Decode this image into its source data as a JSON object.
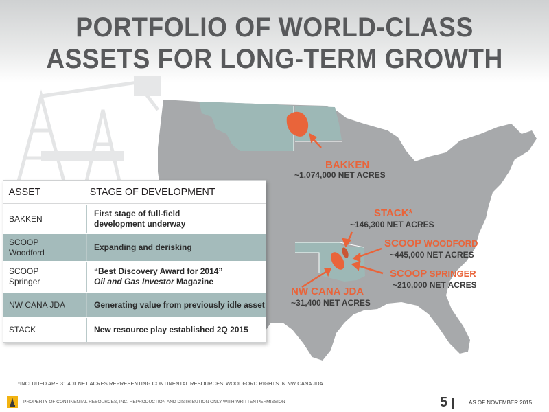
{
  "title": {
    "line1": "PORTFOLIO OF WORLD-CLASS",
    "line2": "ASSETS FOR LONG-TERM GROWTH"
  },
  "map": {
    "labels": [
      {
        "name": "BAKKEN",
        "acres": "~1,074,000 NET ACRES"
      },
      {
        "name": "STACK*",
        "acres": "~146,300 NET ACRES"
      },
      {
        "name_big": "SCOOP",
        "name_small": " WOODFORD",
        "acres": "~445,000 NET ACRES"
      },
      {
        "name_big": "SCOOP",
        "name_small": " SPRINGER",
        "acres": "~210,000 NET ACRES"
      },
      {
        "name": "NW CANA JDA",
        "acres": "~31,400 NET ACRES"
      }
    ],
    "colors": {
      "state_fill": "#9db8b6",
      "map_fill": "#a7a9ab",
      "play_fill": "#e9643a"
    }
  },
  "table": {
    "headers": [
      "ASSET",
      "STAGE OF DEVELOPMENT"
    ],
    "rows": [
      {
        "asset_lines": [
          "BAKKEN"
        ],
        "stage_lines": [
          "First stage of full-field",
          "development underway"
        ]
      },
      {
        "asset_lines": [
          "SCOOP",
          "Woodford"
        ],
        "stage_lines": [
          "Expanding and derisking"
        ]
      },
      {
        "asset_lines": [
          "SCOOP",
          "Springer"
        ],
        "stage_lines": [
          "“Best Discovery Award for 2014”"
        ],
        "stage_italic": "Oil and Gas Investor",
        "stage_suffix": " Magazine"
      },
      {
        "asset_lines": [
          "NW CANA JDA"
        ],
        "stage_lines": [
          "Generating value from previously idle asset"
        ]
      },
      {
        "asset_lines": [
          "STACK"
        ],
        "stage_lines": [
          "New resource play established 2Q 2015"
        ]
      }
    ]
  },
  "footnote": "*INCLUDED ARE 31,400 NET ACRES REPRESENTING CONTINENTAL RESOURCES’ WOODFORD RIGHTS IN NW CANA JDA",
  "footer": {
    "text": "PROPERTY OF CONTINENTAL RESOURCES, INC. REPRODUCTION AND DISTRIBUTION ONLY WITH WRITTEN PERMISSION",
    "page_number": "5",
    "as_of": "AS OF NOVEMBER 2015"
  }
}
